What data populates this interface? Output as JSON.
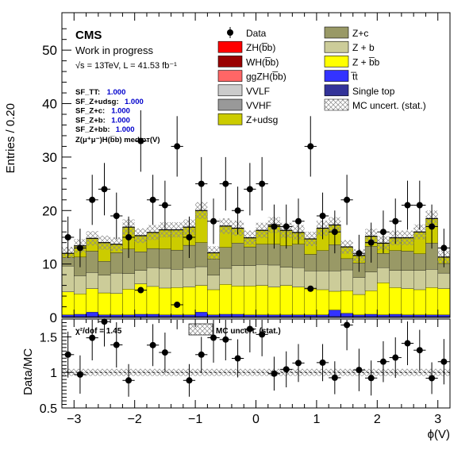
{
  "chart_data": [
    {
      "type": "stacked-histogram",
      "ylabel": "Entries / 0.20",
      "ylim": [
        0,
        57
      ],
      "yticks": [
        0,
        10,
        20,
        30,
        40,
        50
      ],
      "xlim": [
        -3.2,
        3.2
      ],
      "header": {
        "experiment": "CMS",
        "status": "Work in progress",
        "energy_lumi": "√s = 13TeV, L = 41.53 fb⁻¹"
      },
      "scale_factors": [
        {
          "label": "SF_TT:",
          "value": "1.000"
        },
        {
          "label": "SF_Z+udsg:",
          "value": "1.000"
        },
        {
          "label": "SF_Z+c:",
          "value": "1.000"
        },
        {
          "label": "SF_Z+b:",
          "value": "1.000"
        },
        {
          "label": "SF_Z+bb:",
          "value": "1.000"
        }
      ],
      "region": "Z(μ⁺μ⁻)H(b̅b) med pᴛ(V)",
      "bins": {
        "low": -3.2,
        "width": 0.2,
        "count": 32
      },
      "series": [
        {
          "name": "Single top",
          "color": "#333399",
          "values": [
            0.2,
            0.2,
            0.2,
            0.2,
            0.2,
            0.2,
            0.2,
            0.2,
            0.2,
            0.2,
            0.2,
            0.2,
            0.2,
            0.2,
            0.2,
            0.2,
            0.2,
            0.2,
            0.2,
            0.2,
            0.2,
            0.2,
            0.2,
            0.2,
            0.2,
            0.2,
            0.2,
            0.2,
            0.2,
            0.2,
            0.2,
            0.2
          ]
        },
        {
          "name": "t̅t",
          "color": "#3333ff",
          "values": [
            0.3,
            0.4,
            0.8,
            0.3,
            0.3,
            0.3,
            0.4,
            0.4,
            0.3,
            0.3,
            0.3,
            0.8,
            0.3,
            0.4,
            0.4,
            0.3,
            0.3,
            0.3,
            0.3,
            0.3,
            0.3,
            0.3,
            1.2,
            0.6,
            0.3,
            0.4,
            0.3,
            0.4,
            0.3,
            0.3,
            0.3,
            0.3
          ]
        },
        {
          "name": "Z + b̅b",
          "color": "#ffff00",
          "values": [
            4.3,
            3.8,
            4.4,
            4.1,
            4.0,
            4.8,
            5.7,
            5.2,
            5.0,
            5.1,
            5.2,
            5.0,
            4.7,
            5.6,
            5.3,
            5.4,
            5.5,
            5.2,
            5.5,
            5.2,
            5.0,
            4.7,
            3.5,
            4.2,
            3.8,
            4.4,
            6.0,
            5.0,
            4.9,
            4.7,
            5.1,
            4.9
          ]
        },
        {
          "name": "Z + b",
          "color": "#cccc99",
          "values": [
            4.8,
            3.4,
            3.0,
            3.3,
            3.8,
            2.9,
            2.5,
            3.5,
            3.7,
            3.4,
            3.6,
            3.5,
            2.7,
            3.0,
            3.8,
            3.8,
            3.9,
            4.1,
            3.4,
            3.6,
            3.2,
            3.5,
            3.8,
            3.9,
            3.2,
            3.5,
            2.8,
            3.2,
            3.4,
            3.6,
            3.4,
            2.9
          ]
        },
        {
          "name": "Z+c",
          "color": "#999966",
          "values": [
            1.6,
            3.5,
            4.0,
            2.6,
            3.8,
            4.6,
            3.5,
            3.6,
            3.6,
            3.6,
            4.2,
            4.5,
            3.0,
            3.9,
            4.2,
            3.5,
            3.8,
            3.9,
            4.0,
            4.4,
            3.1,
            3.8,
            4.9,
            2.1,
            2.7,
            4.8,
            2.7,
            3.7,
            3.6,
            3.1,
            4.9,
            1.8
          ]
        },
        {
          "name": "Z+udsg",
          "color": "#cccc00",
          "values": [
            0.8,
            2.1,
            2.4,
            3.5,
            1.6,
            4.1,
            3.0,
            3.0,
            3.6,
            3.8,
            3.4,
            6.0,
            1.2,
            4.0,
            2.8,
            1.7,
            2.6,
            3.6,
            2.9,
            2.2,
            2.9,
            4.2,
            3.7,
            2.2,
            1.4,
            1.9,
            1.9,
            2.4,
            2.5,
            4.1,
            4.6,
            1.2
          ]
        }
      ],
      "data": {
        "name": "Data",
        "values": [
          15,
          13,
          22,
          24,
          19,
          15,
          33,
          22,
          21,
          32,
          15,
          25,
          18,
          25,
          20,
          24,
          25,
          17,
          17,
          18,
          32,
          19,
          16,
          22,
          12,
          14,
          16,
          18,
          21,
          21,
          17,
          13
        ]
      },
      "legend": [
        "Data",
        "ZH(b̅b)",
        "WH(b̅b)",
        "ggZH(b̅b)",
        "VVLF",
        "VVHF",
        "Z+udsg",
        "Z+c",
        "Z + b",
        "Z + b̅b",
        "t̅t",
        "Single top",
        "MC uncert. (stat.)"
      ],
      "legend_colors": {
        "Data": "#000000",
        "ZH(b̅b)": "#ff0000",
        "WH(b̅b)": "#990000",
        "ggZH(b̅b)": "#ff6666",
        "VVLF": "#cccccc",
        "VVHF": "#999999",
        "Z+udsg": "#cccc00",
        "Z+c": "#999966",
        "Z + b": "#cccc99",
        "Z + b̅b": "#ffff00",
        "t̅t": "#3333ff",
        "Single top": "#333399",
        "MC uncert. (stat.)": "#aaaaaa"
      }
    },
    {
      "type": "ratio",
      "ylabel": "Data/MC",
      "xlabel": "ϕ(V)",
      "ylim": [
        0.5,
        1.75
      ],
      "yticks": [
        0.5,
        1,
        1.5
      ],
      "xticks": [
        -3,
        -2,
        -1,
        0,
        1,
        2,
        3
      ],
      "chi2_label": "χ²/dof = 1.45",
      "legend": "MC uncert. (stat.)"
    }
  ]
}
